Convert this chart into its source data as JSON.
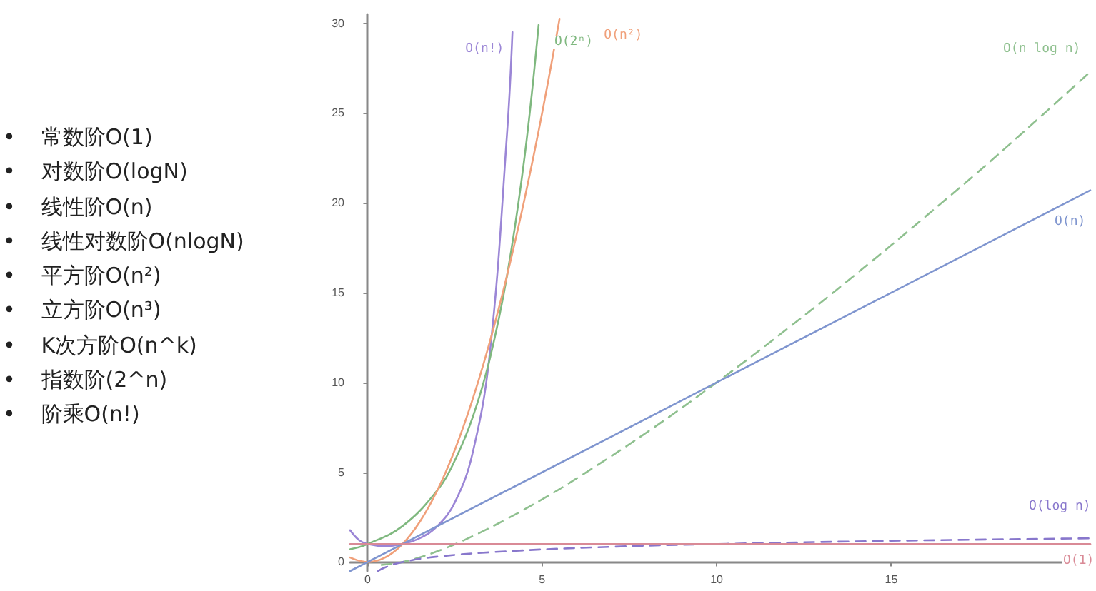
{
  "chart_data": [
    {
      "type": "other",
      "annotations": [
        "• 常数阶O(1)",
        "• 对数阶O(logN)",
        "• 线性阶O(n)",
        "• 线性对数阶O(nlogN)",
        "• 平方阶O(n²)",
        "• 立方阶O(n³)",
        "• K次方阶O(n^k)",
        "• 指数阶(2^n)",
        "• 阶乘O(n!)"
      ]
    },
    {
      "type": "line",
      "xlim": [
        -0.5,
        20.7
      ],
      "ylim": [
        -0.5,
        30.5
      ],
      "xticks": [
        0,
        5,
        10,
        15
      ],
      "yticks": [
        0,
        5,
        10,
        15,
        20,
        25,
        30
      ],
      "grid": false,
      "legend": false,
      "marker": "none",
      "series": [
        {
          "name": "O(n!)",
          "color": "#9b86d6",
          "line_style": "solid",
          "x": [
            -0.5,
            -0.25,
            0,
            0.5,
            1,
            1.5,
            2,
            2.5,
            3,
            3.5,
            4,
            4.15
          ],
          "values": [
            1.77,
            1.23,
            1,
            0.89,
            1,
            1.33,
            2,
            3.32,
            6,
            11.6,
            24,
            29.5
          ]
        },
        {
          "name": "O(2ⁿ)",
          "color": "#7fb87f",
          "line_style": "solid",
          "x": [
            -0.5,
            0,
            1,
            2,
            2.5,
            3,
            3.5,
            4,
            4.5,
            4.9
          ],
          "values": [
            0.71,
            1,
            2,
            4,
            5.66,
            8,
            11.3,
            16,
            22.6,
            29.9
          ]
        },
        {
          "name": "O(n²)",
          "color": "#f0a07a",
          "line_style": "solid",
          "x": [
            -0.5,
            0,
            0.5,
            1,
            1.5,
            2,
            2.5,
            3,
            3.5,
            4,
            4.5,
            5,
            5.5
          ],
          "values": [
            0.25,
            0,
            0.25,
            1,
            2.25,
            4,
            6.25,
            9,
            12.25,
            16,
            20.25,
            25,
            30.25
          ]
        },
        {
          "name": "O(n log n)",
          "color": "#8fc08f",
          "line_style": "dashed",
          "x": [
            0.4,
            1,
            2,
            3,
            4,
            5,
            6,
            8,
            10,
            12,
            14,
            16,
            18,
            20.7
          ],
          "values": [
            -0.16,
            0,
            0.6,
            1.43,
            2.41,
            3.49,
            4.67,
            7.22,
            10,
            12.95,
            16.05,
            19.27,
            22.59,
            27.3
          ]
        },
        {
          "name": "O(n)",
          "color": "#7f95cf",
          "line_style": "solid",
          "x": [
            -0.5,
            20.7
          ],
          "values": [
            -0.5,
            20.7
          ]
        },
        {
          "name": "O(log n)",
          "color": "#8877cc",
          "line_style": "dashed",
          "x": [
            0.3,
            0.5,
            1,
            2,
            4,
            7,
            10,
            15,
            20.7
          ],
          "values": [
            -0.5,
            -0.3,
            0,
            0.3,
            0.6,
            0.85,
            1,
            1.18,
            1.32
          ]
        },
        {
          "name": "O(1)",
          "color": "#d98a96",
          "line_style": "solid",
          "x": [
            -0.5,
            20.7
          ],
          "values": [
            1,
            1
          ]
        }
      ]
    }
  ]
}
